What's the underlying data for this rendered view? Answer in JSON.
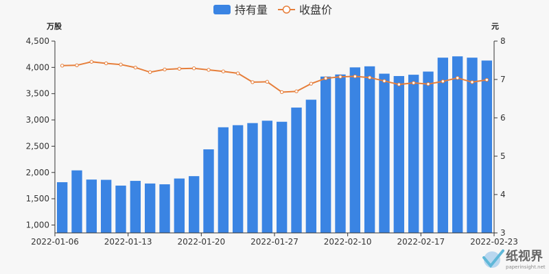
{
  "chart_data": {
    "type": "bar",
    "categories": [
      "2022-01-06",
      "2022-01-07",
      "2022-01-10",
      "2022-01-11",
      "2022-01-12",
      "2022-01-13",
      "2022-01-14",
      "2022-01-17",
      "2022-01-18",
      "2022-01-19",
      "2022-01-20",
      "2022-01-21",
      "2022-01-24",
      "2022-01-25",
      "2022-01-26",
      "2022-01-27",
      "2022-01-28",
      "2022-02-07",
      "2022-02-08",
      "2022-02-09",
      "2022-02-10",
      "2022-02-11",
      "2022-02-14",
      "2022-02-15",
      "2022-02-16",
      "2022-02-17",
      "2022-02-18",
      "2022-02-21",
      "2022-02-22",
      "2022-02-23"
    ],
    "x_tick_labels": [
      "2022-01-06",
      "2022-01-13",
      "2022-01-20",
      "2022-01-27",
      "2022-02-10",
      "2022-02-17",
      "2022-02-23"
    ],
    "series": [
      {
        "name": "持有量",
        "type": "bar",
        "axis": "left",
        "color": "#3a84e3",
        "values": [
          1815,
          2040,
          1865,
          1860,
          1750,
          1840,
          1790,
          1775,
          1885,
          1930,
          2440,
          2860,
          2900,
          2940,
          2985,
          2965,
          3235,
          3385,
          3825,
          3865,
          4000,
          4020,
          3880,
          3835,
          3860,
          3920,
          4185,
          4210,
          4185,
          4130
        ]
      },
      {
        "name": "收盘价",
        "type": "line",
        "axis": "right",
        "color": "#e67e3a",
        "values": [
          7.36,
          7.37,
          7.46,
          7.42,
          7.39,
          7.31,
          7.19,
          7.26,
          7.28,
          7.29,
          7.25,
          7.21,
          7.16,
          6.93,
          6.94,
          6.67,
          6.69,
          6.89,
          7.03,
          7.07,
          7.08,
          7.05,
          6.96,
          6.87,
          6.91,
          6.88,
          6.95,
          7.04,
          6.93,
          6.99
        ]
      }
    ],
    "y_left": {
      "unit": "万股",
      "min": 850,
      "max": 4500,
      "ticks": [
        1000,
        1500,
        2000,
        2500,
        3000,
        3500,
        4000,
        4500
      ],
      "tick_labels": [
        "1,000",
        "1,500",
        "2,000",
        "2,500",
        "3,000",
        "3,500",
        "4,000",
        "4,500"
      ]
    },
    "y_right": {
      "unit": "元",
      "min": 3,
      "max": 8,
      "ticks": [
        3,
        4,
        5,
        6,
        7,
        8
      ],
      "tick_labels": [
        "3",
        "4",
        "5",
        "6",
        "7",
        "8"
      ]
    },
    "legend_position": "top-center",
    "grid": false
  },
  "watermark": {
    "title": "纸视界",
    "url": "paperinsight.net"
  }
}
